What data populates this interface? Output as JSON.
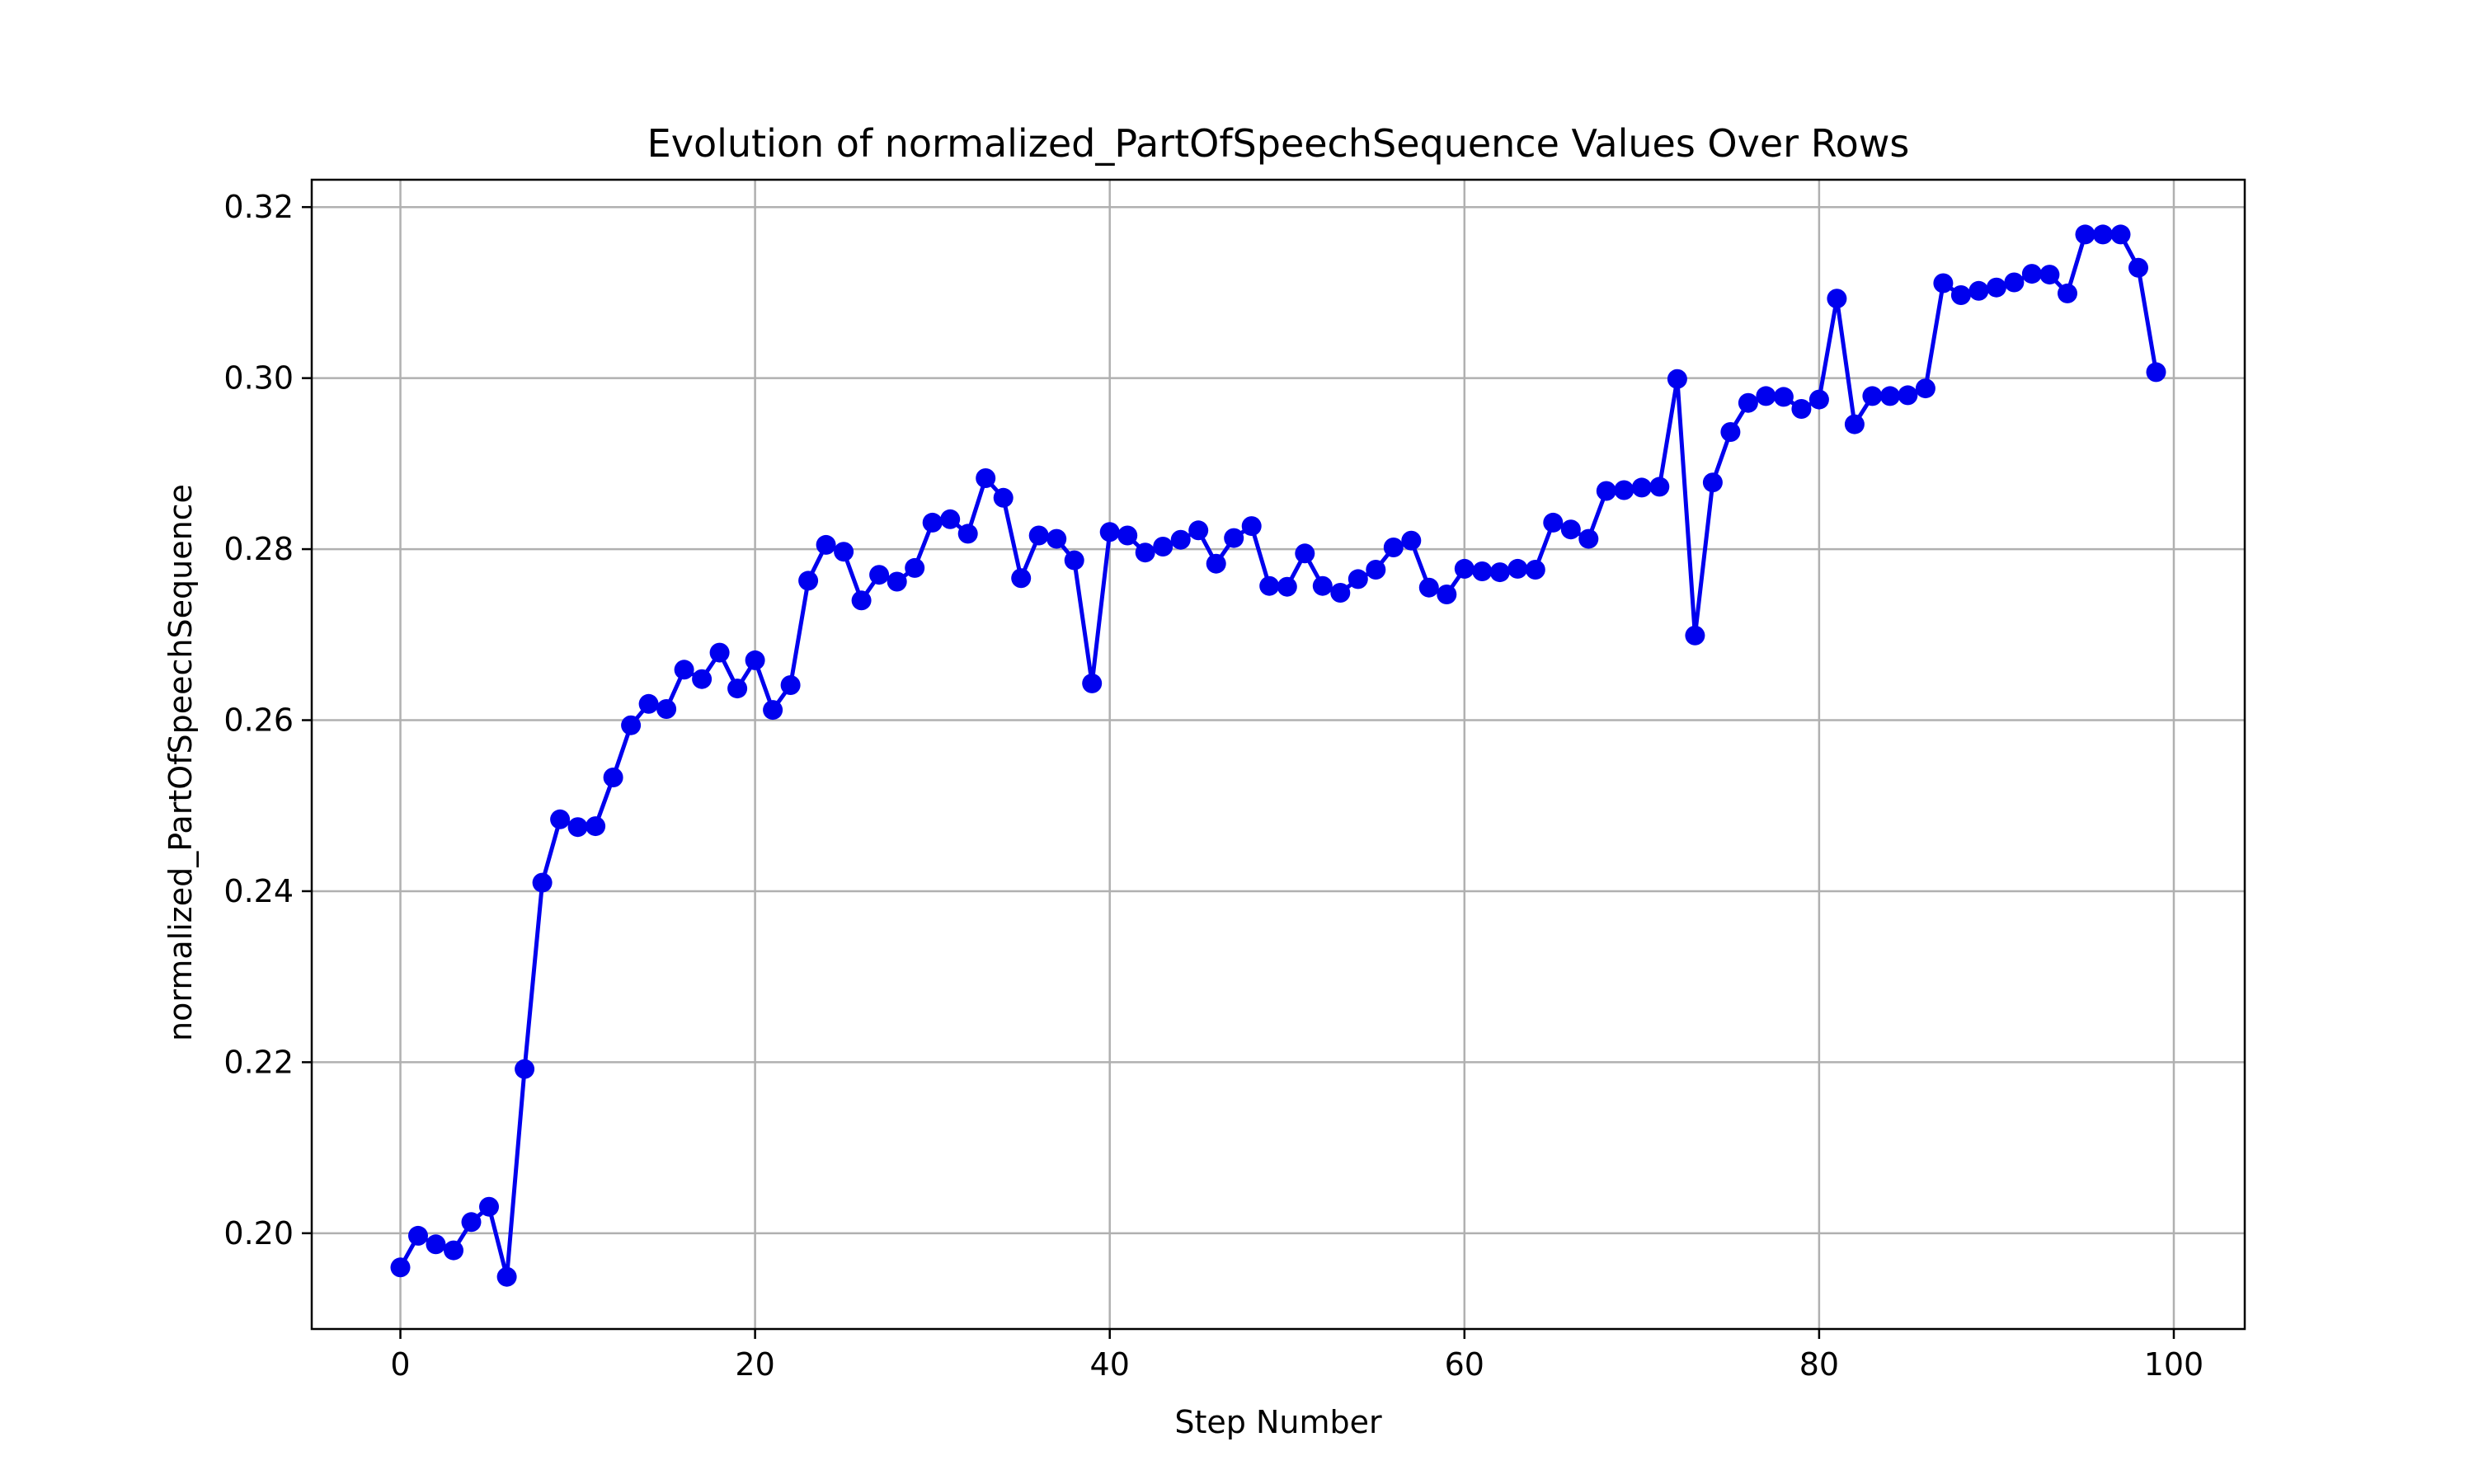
{
  "chart_data": {
    "type": "line",
    "title": "Evolution of normalized_PartOfSpeechSequence Values Over Rows",
    "xlabel": "Step Number",
    "ylabel": "normalized_PartOfSpeechSequence",
    "xlim": [
      -5,
      104
    ],
    "ylim": [
      0.1888,
      0.3232
    ],
    "xticks": [
      0,
      20,
      40,
      60,
      80,
      100
    ],
    "yticks": [
      0.2,
      0.22,
      0.24,
      0.26,
      0.28,
      0.3,
      0.32
    ],
    "grid": true,
    "line_color": "#0000ee",
    "series": [
      {
        "x": [
          0,
          1,
          2,
          3,
          4,
          5,
          6,
          7,
          8,
          9,
          10,
          11,
          12,
          13,
          14,
          15,
          16,
          17,
          18,
          19,
          20,
          21,
          22,
          23,
          24,
          25,
          26,
          27,
          28,
          29,
          30,
          31,
          32,
          33,
          34,
          35,
          36,
          37,
          38,
          39,
          40,
          41,
          42,
          43,
          44,
          45,
          46,
          47,
          48,
          49,
          50,
          51,
          52,
          53,
          54,
          55,
          56,
          57,
          58,
          59,
          60,
          61,
          62,
          63,
          64,
          65,
          66,
          67,
          68,
          69,
          70,
          71,
          72,
          73,
          74,
          75,
          76,
          77,
          78,
          79,
          80,
          81,
          82,
          83,
          84,
          85,
          86,
          87,
          88,
          89,
          90,
          91,
          92,
          93,
          94,
          95,
          96,
          97,
          98,
          99
        ],
        "values": [
          0.196,
          0.1997,
          0.1987,
          0.198,
          0.2013,
          0.2031,
          0.1949,
          0.2192,
          0.241,
          0.2484,
          0.2475,
          0.2476,
          0.2533,
          0.2594,
          0.2619,
          0.2613,
          0.2659,
          0.2648,
          0.2679,
          0.2637,
          0.267,
          0.2612,
          0.2641,
          0.2763,
          0.2805,
          0.2797,
          0.274,
          0.277,
          0.2762,
          0.2778,
          0.2831,
          0.2835,
          0.2818,
          0.2883,
          0.286,
          0.2766,
          0.2816,
          0.2812,
          0.2787,
          0.2643,
          0.282,
          0.2816,
          0.2796,
          0.2803,
          0.2811,
          0.2822,
          0.2783,
          0.2813,
          0.2827,
          0.2757,
          0.2756,
          0.2795,
          0.2757,
          0.2749,
          0.2765,
          0.2776,
          0.2802,
          0.281,
          0.2755,
          0.2747,
          0.2777,
          0.2774,
          0.2773,
          0.2777,
          0.2776,
          0.2831,
          0.2823,
          0.2812,
          0.2868,
          0.2869,
          0.2872,
          0.2873,
          0.2999,
          0.2699,
          0.2878,
          0.2937,
          0.2971,
          0.2979,
          0.2978,
          0.2964,
          0.2975,
          0.3093,
          0.2946,
          0.2979,
          0.2979,
          0.298,
          0.2988,
          0.3111,
          0.3097,
          0.3102,
          0.3106,
          0.3112,
          0.3122,
          0.3121,
          0.3099,
          0.3168,
          0.3168,
          0.3168,
          0.3129,
          0.3007
        ]
      }
    ]
  }
}
